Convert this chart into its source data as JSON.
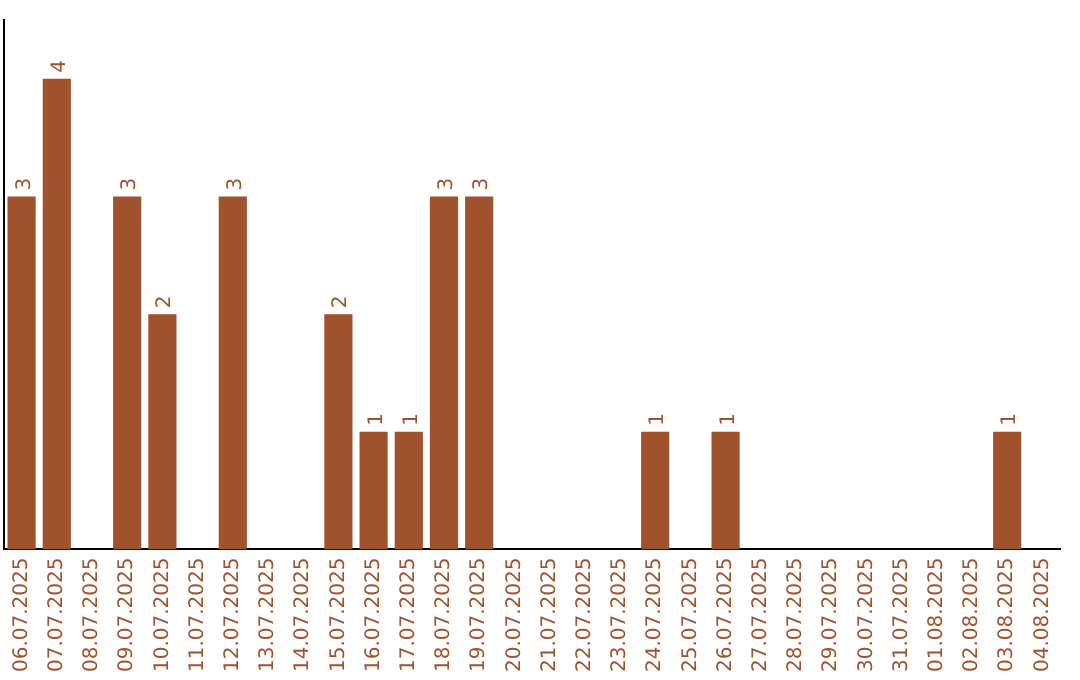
{
  "chart_data": {
    "type": "bar",
    "categories": [
      "06.07.2025",
      "07.07.2025",
      "08.07.2025",
      "09.07.2025",
      "10.07.2025",
      "11.07.2025",
      "12.07.2025",
      "13.07.2025",
      "14.07.2025",
      "15.07.2025",
      "16.07.2025",
      "17.07.2025",
      "18.07.2025",
      "19.07.2025",
      "20.07.2025",
      "21.07.2025",
      "22.07.2025",
      "23.07.2025",
      "24.07.2025",
      "25.07.2025",
      "26.07.2025",
      "27.07.2025",
      "28.07.2025",
      "29.07.2025",
      "30.07.2025",
      "31.07.2025",
      "01.08.2025",
      "02.08.2025",
      "03.08.2025",
      "04.08.2025"
    ],
    "values": [
      3,
      4,
      0,
      3,
      2,
      0,
      3,
      0,
      0,
      2,
      1,
      1,
      3,
      3,
      0,
      0,
      0,
      0,
      1,
      0,
      1,
      0,
      0,
      0,
      0,
      0,
      0,
      0,
      1,
      0
    ],
    "value_labels": [
      "3",
      "4",
      null,
      "3",
      "2",
      null,
      "3",
      null,
      null,
      "2",
      "1",
      "1",
      "3",
      "3",
      null,
      null,
      null,
      null,
      "1",
      null,
      "1",
      null,
      null,
      null,
      null,
      null,
      null,
      null,
      "1",
      null
    ],
    "color": "#a0522d",
    "grid": false,
    "legend": false,
    "tick_labels": "x"
  }
}
